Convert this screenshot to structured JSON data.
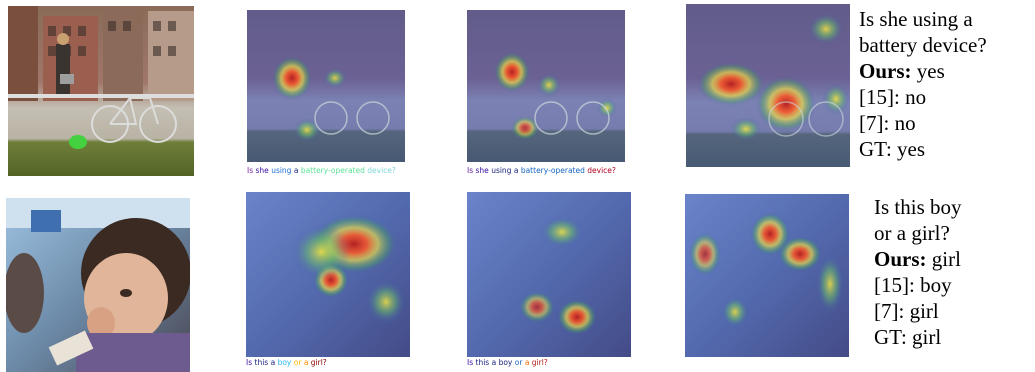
{
  "rows": [
    {
      "caption_words_col2": [
        {
          "text": "Is",
          "color": "#7a1fa2"
        },
        {
          "text": "she",
          "color": "#3a0ca3"
        },
        {
          "text": "using",
          "color": "#1e6fd9"
        },
        {
          "text": "a",
          "color": "#1a237e"
        },
        {
          "text": "battery-operated",
          "color": "#5ee09a"
        },
        {
          "text": "device?",
          "color": "#7fd6d6"
        }
      ],
      "caption_words_col3": [
        {
          "text": "Is",
          "color": "#5a189a"
        },
        {
          "text": "she",
          "color": "#3a0ca3"
        },
        {
          "text": "using",
          "color": "#1a237e"
        },
        {
          "text": "a",
          "color": "#1a237e"
        },
        {
          "text": "battery-operated",
          "color": "#1565c0"
        },
        {
          "text": "device?",
          "color": "#b00020"
        }
      ],
      "question_line1": "Is she using a",
      "question_line2": "battery device?",
      "ours_label": "Ours:",
      "ours_answer": "yes",
      "ref15": "[15]: no",
      "ref7": "[7]: no",
      "gt": "GT: yes"
    },
    {
      "caption_words_col2": [
        {
          "text": "Is",
          "color": "#3a0ca3"
        },
        {
          "text": "this",
          "color": "#1a237e"
        },
        {
          "text": "a",
          "color": "#1a237e"
        },
        {
          "text": "boy",
          "color": "#29b6f6"
        },
        {
          "text": "or",
          "color": "#ffb300"
        },
        {
          "text": "a",
          "color": "#ff8f00"
        },
        {
          "text": "girl?",
          "color": "#8e0000"
        }
      ],
      "caption_words_col3": [
        {
          "text": "Is",
          "color": "#3a0ca3"
        },
        {
          "text": "this",
          "color": "#1a237e"
        },
        {
          "text": "a",
          "color": "#1a237e"
        },
        {
          "text": "boy",
          "color": "#1a237e"
        },
        {
          "text": "or",
          "color": "#1565c0"
        },
        {
          "text": "a",
          "color": "#ef6c00"
        },
        {
          "text": "girl?",
          "color": "#b71c1c"
        }
      ],
      "question_line1": "Is this boy",
      "question_line2": "or a girl?",
      "ours_label": "Ours:",
      "ours_answer": "girl",
      "ref15": "[15]: boy",
      "ref7": "[7]: girl",
      "gt": "GT: girl"
    }
  ]
}
